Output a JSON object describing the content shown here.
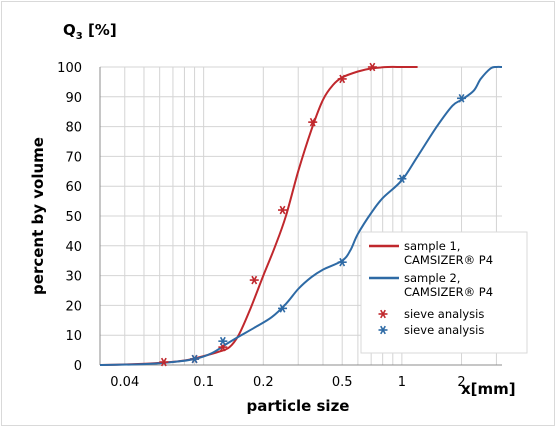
{
  "chart_data": {
    "type": "line",
    "title": "",
    "q_label": {
      "main": "Q",
      "sub": "3",
      "unit": "[%]"
    },
    "xlabel": "particle size",
    "x_unit_label": "x[mm]",
    "ylabel": "percent by volume",
    "x_scale": "log",
    "xlim": [
      0.03,
      3.2
    ],
    "ylim": [
      0,
      100
    ],
    "x_ticks": [
      0.04,
      0.1,
      0.2,
      0.5,
      1,
      2
    ],
    "x_tick_labels": [
      "0.04",
      "0.1",
      "0.2",
      "0.5",
      "1",
      "2"
    ],
    "y_ticks": [
      0,
      10,
      20,
      30,
      40,
      50,
      60,
      70,
      80,
      90,
      100
    ],
    "y_tick_labels": [
      "0",
      "10",
      "20",
      "30",
      "40",
      "50",
      "60",
      "70",
      "80",
      "90",
      "100"
    ],
    "grid": true,
    "legend_position": "right",
    "series": [
      {
        "name": "sample 1, CAMSIZER® P4",
        "kind": "line",
        "color": "#c0282d",
        "x": [
          0.03,
          0.045,
          0.06,
          0.08,
          0.1,
          0.12,
          0.135,
          0.15,
          0.17,
          0.2,
          0.23,
          0.26,
          0.3,
          0.35,
          0.4,
          0.45,
          0.5,
          0.6,
          0.7,
          0.85,
          1.0,
          1.2
        ],
        "y": [
          0,
          0.3,
          0.7,
          1.5,
          3,
          4.5,
          6,
          10,
          18,
          30,
          40,
          50,
          65,
          79,
          89,
          94,
          96.5,
          98.5,
          99.5,
          100,
          100,
          100
        ]
      },
      {
        "name": "sample 2, CAMSIZER® P4",
        "kind": "line",
        "color": "#2e6aa5",
        "x": [
          0.03,
          0.05,
          0.07,
          0.09,
          0.11,
          0.13,
          0.15,
          0.18,
          0.22,
          0.26,
          0.3,
          0.35,
          0.4,
          0.5,
          0.55,
          0.6,
          0.7,
          0.8,
          1.0,
          1.2,
          1.5,
          1.8,
          2.0,
          2.3,
          2.5,
          2.8,
          3.0,
          3.2
        ],
        "y": [
          0,
          0.3,
          1,
          2,
          4,
          7,
          9.5,
          12.5,
          16,
          20.5,
          25.5,
          29.5,
          32,
          35,
          38.5,
          44,
          51,
          56,
          62,
          70,
          80,
          87,
          89,
          92,
          96,
          99.5,
          100,
          100
        ]
      },
      {
        "name": "sieve analysis",
        "kind": "markers",
        "color": "#c0282d",
        "x": [
          0.063,
          0.09,
          0.125,
          0.18,
          0.25,
          0.355,
          0.5,
          0.71
        ],
        "y": [
          1,
          2,
          6,
          28.5,
          52,
          81.5,
          96,
          100
        ]
      },
      {
        "name": "sieve analysis",
        "kind": "markers",
        "color": "#2e6aa5",
        "x": [
          0.09,
          0.125,
          0.25,
          0.5,
          1.0,
          2.0
        ],
        "y": [
          2,
          8,
          19,
          34.5,
          62.5,
          89.5
        ]
      }
    ],
    "legend": [
      {
        "label": "sample 1,",
        "label2": "CAMSIZER® P4",
        "symbol": "line",
        "color": "#c0282d"
      },
      {
        "label": "sample 2,",
        "label2": "CAMSIZER® P4",
        "symbol": "line",
        "color": "#2e6aa5"
      },
      {
        "label": "sieve analysis",
        "symbol": "star",
        "color": "#c0282d"
      },
      {
        "label": "sieve analysis",
        "symbol": "star",
        "color": "#2e6aa5"
      }
    ]
  }
}
